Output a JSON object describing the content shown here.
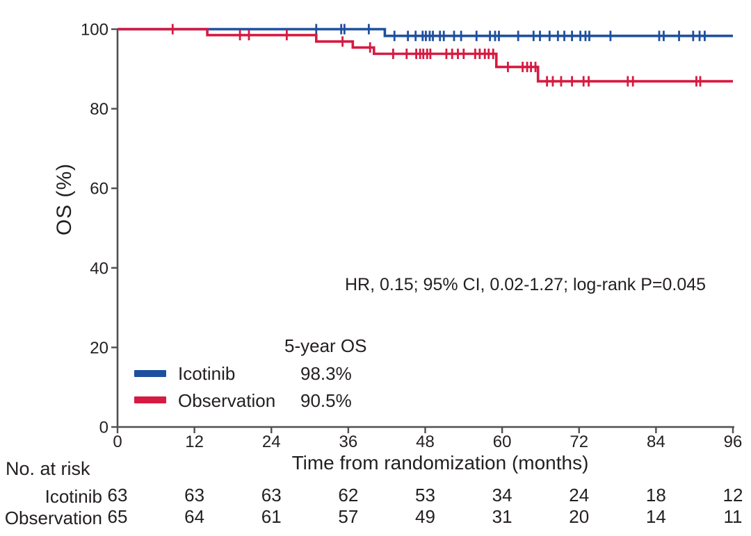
{
  "figure": {
    "background": "#ffffff",
    "text_color": "#231f20",
    "axis_color": "#4f4f52"
  },
  "chart_data": {
    "type": "line",
    "subtype": "kaplan-meier-step",
    "title": "",
    "xlabel": "Time from randomization (months)",
    "ylabel": "OS (%)",
    "xlim": [
      0,
      96
    ],
    "ylim": [
      0,
      100
    ],
    "xticks": [
      0,
      12,
      24,
      36,
      48,
      60,
      72,
      84,
      96
    ],
    "yticks": [
      0,
      20,
      40,
      60,
      80,
      100
    ],
    "grid": false,
    "legend_position": "inside-lower-left",
    "annotation": "HR, 0.15; 95% CI, 0.02-1.27; log-rank P=0.045",
    "legend_header": "5-year OS",
    "series": [
      {
        "name": "Icotinib",
        "color": "#1e509f",
        "five_year_os": "98.3%",
        "steps": [
          [
            0,
            100
          ],
          [
            41.7,
            100
          ],
          [
            41.7,
            98.3
          ],
          [
            96,
            98.3
          ]
        ],
        "censors": [
          31.0,
          34.9,
          35.4,
          39.2,
          43.2,
          45.3,
          46.5,
          47.6,
          48.1,
          48.7,
          49.2,
          50.3,
          50.9,
          52.5,
          53.6,
          56.0,
          58.1,
          58.9,
          59.5,
          62.5,
          64.9,
          65.9,
          67.4,
          68.7,
          69.7,
          70.9,
          72.2,
          73.0,
          73.6,
          76.9,
          84.5,
          85.2,
          87.6,
          89.8,
          90.8,
          91.6
        ]
      },
      {
        "name": "Observation",
        "color": "#d61a41",
        "five_year_os": "90.5%",
        "steps": [
          [
            0,
            100
          ],
          [
            14.0,
            100
          ],
          [
            14.0,
            98.5
          ],
          [
            31.0,
            98.5
          ],
          [
            31.0,
            96.9
          ],
          [
            36.7,
            96.9
          ],
          [
            36.7,
            95.4
          ],
          [
            40.0,
            95.4
          ],
          [
            40.0,
            93.8
          ],
          [
            59.1,
            93.8
          ],
          [
            59.1,
            90.5
          ],
          [
            65.6,
            90.5
          ],
          [
            65.6,
            86.9
          ],
          [
            96,
            86.9
          ]
        ],
        "censors": [
          8.6,
          19.1,
          20.5,
          26.4,
          35.1,
          39.4,
          43.0,
          45.1,
          46.6,
          47.2,
          47.7,
          48.3,
          48.8,
          51.3,
          52.2,
          53.1,
          54.0,
          55.8,
          56.5,
          57.3,
          57.9,
          58.6,
          60.9,
          63.2,
          63.9,
          64.5,
          65.2,
          67.0,
          67.9,
          69.2,
          70.9,
          72.7,
          73.5,
          79.6,
          80.4,
          90.3,
          90.9
        ]
      }
    ]
  },
  "risk_table": {
    "title": "No. at risk",
    "columns": [
      0,
      12,
      24,
      36,
      48,
      60,
      72,
      84,
      96
    ],
    "rows": [
      {
        "label": "Icotinib",
        "values": [
          63,
          63,
          63,
          62,
          53,
          34,
          24,
          18,
          12
        ]
      },
      {
        "label": "Observation",
        "values": [
          65,
          64,
          61,
          57,
          49,
          31,
          20,
          14,
          11
        ]
      }
    ]
  }
}
